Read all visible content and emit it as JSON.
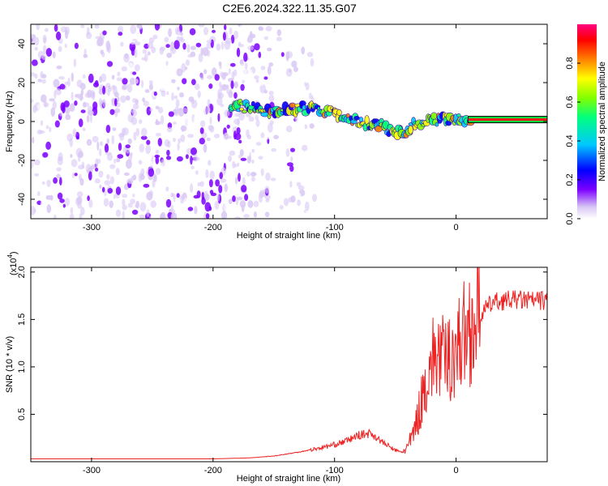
{
  "figure_title": "C2E6.2024.322.11.35.G07",
  "chart_data": [
    {
      "type": "heatmap",
      "title": "C2E6.2024.322.11.35.G07",
      "xlabel": "Height of straight line (km)",
      "ylabel": "Frequency (Hz)",
      "xlim": [
        -350,
        75
      ],
      "ylim": [
        -50,
        50
      ],
      "xticks": [
        -300,
        -200,
        -100,
        0
      ],
      "yticks": [
        -40,
        -20,
        0,
        20,
        40
      ],
      "colorbar": {
        "label": "Normalized spectral amplitude",
        "range": [
          0,
          1
        ],
        "ticks": [
          "0.0",
          "0.2",
          "0.4",
          "0.6",
          "0.8"
        ],
        "colormap": [
          "#ffffff",
          "#d9c8f5",
          "#7b00ff",
          "#0000ff",
          "#00c8ff",
          "#00ff80",
          "#80ff00",
          "#ffff00",
          "#ff8000",
          "#ff0000",
          "#ff0080"
        ]
      },
      "ridge": {
        "description": "dominant frequency trace",
        "x": [
          -185,
          -170,
          -150,
          -130,
          -110,
          -95,
          -80,
          -65,
          -55,
          -45,
          -35,
          -25,
          -15,
          -5,
          5,
          15,
          40,
          75
        ],
        "y": [
          8,
          7,
          5,
          7,
          6,
          3,
          0,
          -2,
          -4,
          -6,
          -2,
          0,
          1,
          1,
          1,
          1,
          1,
          1
        ]
      },
      "noise_region": {
        "x_from": -350,
        "x_to": -150
      }
    },
    {
      "type": "line",
      "xlabel": "Height of straight line (km)",
      "ylabel": "SNR (10 * v/v)",
      "y_scale_label": "(x10",
      "y_scale_exp": "4",
      "xlim": [
        -350,
        75
      ],
      "ylim": [
        0,
        2.05
      ],
      "xticks": [
        -300,
        -200,
        -100,
        0
      ],
      "yticks": [
        "0.5",
        "1.0",
        "1.5",
        "2.0"
      ],
      "color": "#ee2222",
      "series": [
        {
          "name": "SNR (x10^4)",
          "x": [
            -350,
            -300,
            -250,
            -200,
            -170,
            -150,
            -130,
            -110,
            -100,
            -90,
            -80,
            -70,
            -60,
            -50,
            -45,
            -40,
            -35,
            -30,
            -25,
            -20,
            -15,
            -10,
            -5,
            0,
            10,
            20,
            25,
            30,
            40,
            50,
            60,
            75
          ],
          "y": [
            0.03,
            0.03,
            0.03,
            0.03,
            0.04,
            0.06,
            0.1,
            0.15,
            0.18,
            0.22,
            0.28,
            0.3,
            0.2,
            0.12,
            0.1,
            0.15,
            0.3,
            0.55,
            0.85,
            1.05,
            1.15,
            1.05,
            1.1,
            1.2,
            1.4,
            1.55,
            1.62,
            1.68,
            1.7,
            1.71,
            1.7,
            1.7
          ]
        }
      ]
    }
  ]
}
